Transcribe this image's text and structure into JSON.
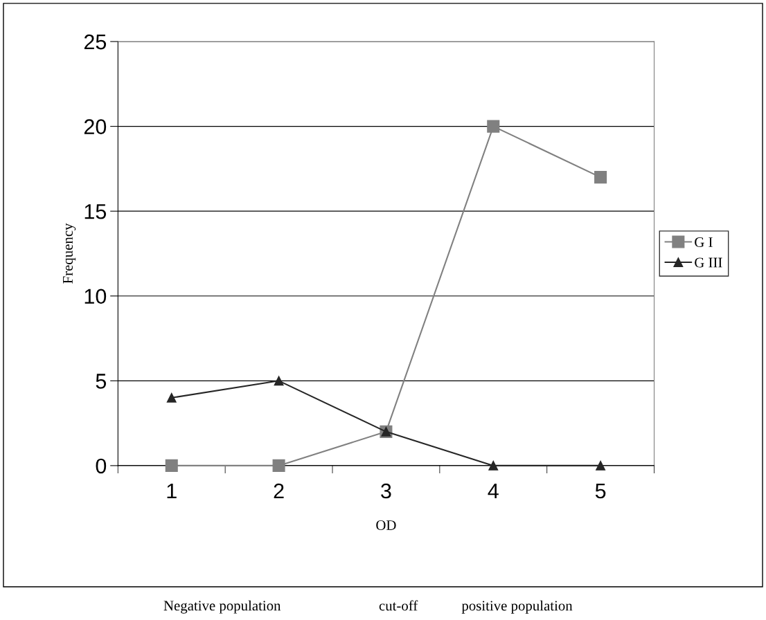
{
  "chart_data": {
    "type": "line",
    "categories": [
      "1",
      "2",
      "3",
      "4",
      "5"
    ],
    "xlabel": "OD",
    "ylabel": "Frequency",
    "series": [
      {
        "name": "G I",
        "color": "#808080",
        "marker": "square",
        "values": [
          0,
          0,
          2,
          20,
          17
        ]
      },
      {
        "name": "G III",
        "color": "#262626",
        "marker": "triangle",
        "values": [
          4,
          5,
          2,
          0,
          0
        ]
      }
    ],
    "ylim": [
      0,
      25
    ],
    "yticks": [
      0,
      5,
      10,
      15,
      20,
      25
    ],
    "grid": "y",
    "legend": "right",
    "line_style": "solid",
    "annotations": [
      "Negative population",
      "cut-off",
      "positive population"
    ]
  }
}
